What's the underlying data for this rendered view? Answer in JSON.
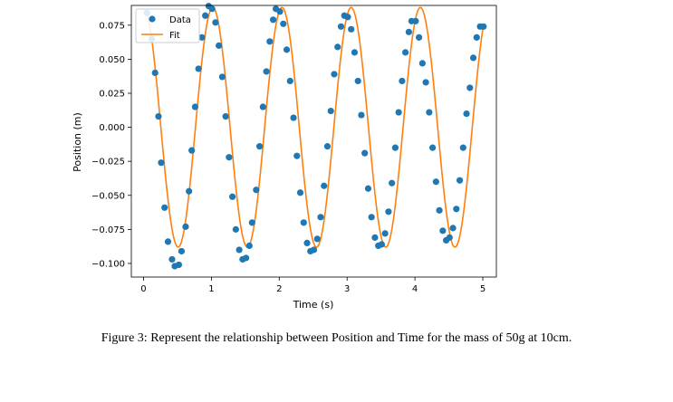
{
  "caption": "Figure 3: Represent the relationship between Position and Time for the mass of 50g at 10cm.",
  "colors": {
    "data": "#1f77b4",
    "fit": "#ff7f0e"
  },
  "chart_data": {
    "type": "scatter",
    "xlabel": "Time (s)",
    "ylabel": "Position (m)",
    "xlim": [
      -0.18,
      5.2
    ],
    "ylim": [
      -0.11,
      0.0895
    ],
    "xticks": [
      0,
      1,
      2,
      3,
      4,
      5
    ],
    "yticks": [
      -0.1,
      -0.075,
      -0.05,
      -0.025,
      0.0,
      0.025,
      0.05,
      0.075
    ],
    "ytick_labels": [
      "−0.100",
      "−0.075",
      "−0.050",
      "−0.025",
      "0.000",
      "0.025",
      "0.050",
      "0.075"
    ],
    "grid": false,
    "legend": {
      "position": "upper-left",
      "entries": [
        "Data",
        "Fit"
      ]
    },
    "series": [
      {
        "name": "Data",
        "kind": "scatter",
        "points": [
          [
            0.05,
            0.084
          ],
          [
            0.12,
            0.065
          ],
          [
            0.17,
            0.04
          ],
          [
            0.22,
            0.008
          ],
          [
            0.26,
            -0.026
          ],
          [
            0.31,
            -0.059
          ],
          [
            0.36,
            -0.084
          ],
          [
            0.42,
            -0.097
          ],
          [
            0.46,
            -0.102
          ],
          [
            0.52,
            -0.101
          ],
          [
            0.56,
            -0.091
          ],
          [
            0.62,
            -0.073
          ],
          [
            0.67,
            -0.047
          ],
          [
            0.71,
            -0.017
          ],
          [
            0.76,
            0.015
          ],
          [
            0.81,
            0.043
          ],
          [
            0.86,
            0.066
          ],
          [
            0.91,
            0.082
          ],
          [
            0.96,
            0.089
          ],
          [
            1.01,
            0.087
          ],
          [
            1.06,
            0.077
          ],
          [
            1.11,
            0.06
          ],
          [
            1.16,
            0.037
          ],
          [
            1.21,
            0.008
          ],
          [
            1.26,
            -0.022
          ],
          [
            1.31,
            -0.051
          ],
          [
            1.36,
            -0.075
          ],
          [
            1.41,
            -0.09
          ],
          [
            1.46,
            -0.097
          ],
          [
            1.51,
            -0.096
          ],
          [
            1.56,
            -0.087
          ],
          [
            1.6,
            -0.07
          ],
          [
            1.66,
            -0.046
          ],
          [
            1.71,
            -0.014
          ],
          [
            1.76,
            0.015
          ],
          [
            1.81,
            0.041
          ],
          [
            1.86,
            0.063
          ],
          [
            1.91,
            0.079
          ],
          [
            1.95,
            0.087
          ],
          [
            2.01,
            0.085
          ],
          [
            2.06,
            0.076
          ],
          [
            2.11,
            0.057
          ],
          [
            2.16,
            0.034
          ],
          [
            2.21,
            0.007
          ],
          [
            2.26,
            -0.021
          ],
          [
            2.31,
            -0.048
          ],
          [
            2.36,
            -0.07
          ],
          [
            2.41,
            -0.085
          ],
          [
            2.46,
            -0.091
          ],
          [
            2.51,
            -0.09
          ],
          [
            2.56,
            -0.082
          ],
          [
            2.61,
            -0.066
          ],
          [
            2.66,
            -0.043
          ],
          [
            2.71,
            -0.014
          ],
          [
            2.76,
            0.012
          ],
          [
            2.81,
            0.039
          ],
          [
            2.86,
            0.059
          ],
          [
            2.91,
            0.074
          ],
          [
            2.96,
            0.082
          ],
          [
            3.01,
            0.081
          ],
          [
            3.06,
            0.072
          ],
          [
            3.11,
            0.055
          ],
          [
            3.16,
            0.034
          ],
          [
            3.21,
            0.009
          ],
          [
            3.26,
            -0.019
          ],
          [
            3.31,
            -0.045
          ],
          [
            3.36,
            -0.066
          ],
          [
            3.41,
            -0.081
          ],
          [
            3.46,
            -0.087
          ],
          [
            3.51,
            -0.086
          ],
          [
            3.56,
            -0.078
          ],
          [
            3.61,
            -0.062
          ],
          [
            3.66,
            -0.041
          ],
          [
            3.71,
            -0.015
          ],
          [
            3.76,
            0.011
          ],
          [
            3.81,
            0.034
          ],
          [
            3.86,
            0.055
          ],
          [
            3.91,
            0.07
          ],
          [
            3.95,
            0.078
          ],
          [
            4.01,
            0.078
          ],
          [
            4.06,
            0.066
          ],
          [
            4.11,
            0.047
          ],
          [
            4.16,
            0.033
          ],
          [
            4.21,
            0.011
          ],
          [
            4.26,
            -0.015
          ],
          [
            4.31,
            -0.04
          ],
          [
            4.36,
            -0.061
          ],
          [
            4.41,
            -0.076
          ],
          [
            4.46,
            -0.083
          ],
          [
            4.51,
            -0.081
          ],
          [
            4.56,
            -0.074
          ],
          [
            4.61,
            -0.06
          ],
          [
            4.66,
            -0.039
          ],
          [
            4.71,
            -0.015
          ],
          [
            4.76,
            0.01
          ],
          [
            4.81,
            0.029
          ],
          [
            4.86,
            0.051
          ],
          [
            4.91,
            0.066
          ],
          [
            4.96,
            0.074
          ],
          [
            5.01,
            0.074
          ]
        ]
      },
      {
        "name": "Fit",
        "kind": "line",
        "amplitude": 0.088,
        "period": 1.02,
        "start_time": 0.04,
        "end_time": 5.01
      }
    ]
  }
}
